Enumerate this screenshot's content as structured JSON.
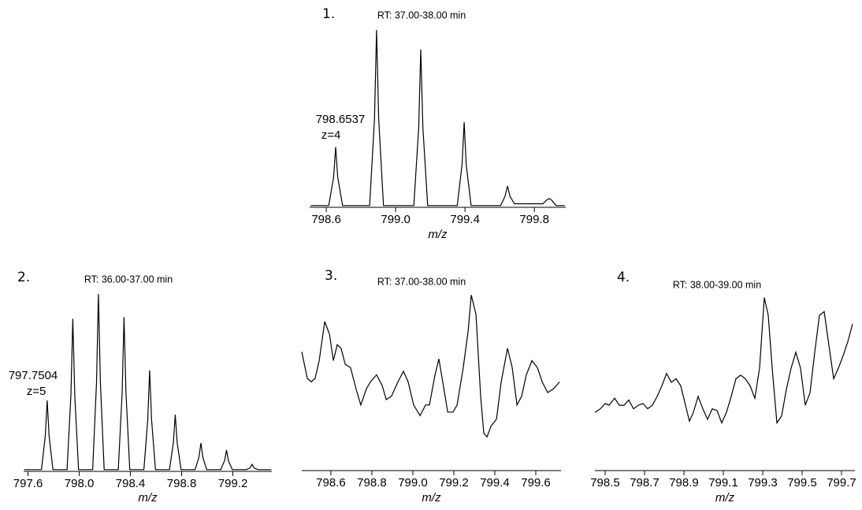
{
  "chart_data": [
    {
      "type": "line",
      "label": "1.",
      "title": "RT: 37.00-38.00  min",
      "xlabel": "m/z",
      "annotations": [
        "798.6537",
        "z=4"
      ],
      "color": "#000000",
      "xlim": [
        798.504,
        799.981
      ],
      "ylim": [
        0,
        100
      ],
      "xticks": [
        798.6,
        {
          "value": 799,
          "label": "799.0"
        },
        799.4,
        799.8
      ],
      "x": [
        798.51,
        798.614,
        798.642,
        798.654,
        798.666,
        798.694,
        798.85,
        798.878,
        798.89,
        798.902,
        798.93,
        799.105,
        799.133,
        799.145,
        799.157,
        799.185,
        799.355,
        799.383,
        799.395,
        799.407,
        799.435,
        799.605,
        799.63,
        799.645,
        799.66,
        799.685,
        799.85,
        799.87,
        799.886,
        799.9,
        799.925,
        799.975
      ],
      "values": [
        1,
        1,
        17,
        34,
        17,
        1,
        1,
        50,
        100,
        50,
        1,
        1,
        45,
        89,
        45,
        1,
        1,
        24,
        48,
        24,
        1,
        1,
        6,
        12,
        6,
        2,
        2,
        4,
        5,
        4,
        1,
        1
      ]
    },
    {
      "type": "line",
      "label": "2.",
      "title": "RT: 36.00-37.00  min",
      "xlabel": "m/z",
      "annotations": [
        "797.7504",
        "z=5"
      ],
      "color": "#000000",
      "xlim": [
        797.566,
        799.504
      ],
      "ylim": [
        0,
        100
      ],
      "xticks": [
        797.6,
        {
          "value": 798,
          "label": "798.0"
        },
        798.4,
        798.8,
        799.2
      ],
      "x": [
        797.57,
        797.705,
        797.735,
        797.75,
        797.765,
        797.795,
        797.905,
        797.935,
        797.95,
        797.965,
        797.995,
        798.105,
        798.135,
        798.15,
        798.165,
        798.195,
        798.305,
        798.335,
        798.35,
        798.365,
        798.395,
        798.505,
        798.535,
        798.55,
        798.565,
        798.595,
        798.705,
        798.735,
        798.75,
        798.765,
        798.795,
        798.905,
        798.935,
        798.95,
        798.965,
        798.995,
        799.105,
        799.135,
        799.15,
        799.165,
        799.195,
        799.305,
        799.335,
        799.35,
        799.365,
        799.395,
        799.5
      ],
      "values": [
        1,
        1,
        20,
        40,
        20,
        1,
        1,
        43,
        86,
        43,
        1,
        1,
        50,
        100,
        50,
        1,
        1,
        44,
        87,
        44,
        1,
        1,
        29,
        57,
        29,
        1,
        1,
        16,
        32,
        16,
        1,
        1,
        8,
        16,
        8,
        1,
        1,
        6,
        12,
        6,
        1,
        1,
        2,
        4,
        2,
        1,
        1
      ]
    },
    {
      "type": "line",
      "label": "3.",
      "title": "RT: 37.00-38.00  min",
      "xlabel": "m/z",
      "annotations": [],
      "color": "#000000",
      "xlim": [
        798.458,
        799.723
      ],
      "ylim": [
        0,
        100
      ],
      "xticks": [
        798.6,
        798.8,
        {
          "value": 799,
          "label": "799.0"
        },
        799.2,
        799.4,
        799.6
      ],
      "x": [
        798.458,
        798.485,
        798.504,
        798.523,
        798.543,
        798.57,
        798.593,
        798.612,
        798.631,
        798.65,
        798.67,
        798.696,
        798.723,
        798.746,
        798.773,
        798.793,
        798.823,
        798.85,
        798.87,
        798.896,
        798.927,
        798.954,
        798.977,
        799.004,
        799.035,
        799.062,
        799.081,
        799.108,
        799.127,
        799.146,
        799.17,
        799.196,
        799.216,
        799.246,
        799.27,
        799.285,
        799.308,
        799.331,
        799.346,
        799.362,
        799.381,
        799.408,
        799.431,
        799.462,
        799.485,
        799.508,
        799.531,
        799.554,
        799.581,
        799.608,
        799.631,
        799.658,
        799.685,
        799.716
      ],
      "values": [
        67,
        52,
        50,
        52,
        62,
        84,
        77,
        62,
        71,
        69,
        60,
        58,
        46,
        37,
        46,
        50,
        54,
        48,
        40,
        42,
        50,
        56,
        50,
        37,
        31,
        37,
        37,
        54,
        63,
        50,
        33,
        33,
        37,
        58,
        79,
        99,
        88,
        42,
        21,
        19,
        25,
        29,
        50,
        69,
        58,
        37,
        42,
        54,
        62,
        58,
        50,
        44,
        46,
        50
      ]
    },
    {
      "type": "line",
      "label": "4.",
      "title": "RT: 38.00-39.00  min",
      "xlabel": "m/z",
      "annotations": [],
      "color": "#000000",
      "xlim": [
        798.448,
        799.768
      ],
      "ylim": [
        0,
        100
      ],
      "xticks": [
        798.5,
        798.7,
        798.9,
        799.1,
        799.3,
        799.5,
        799.7
      ],
      "x": [
        798.448,
        798.476,
        798.5,
        798.52,
        798.548,
        798.572,
        798.596,
        798.62,
        798.644,
        798.668,
        798.692,
        798.716,
        798.74,
        798.764,
        798.788,
        798.812,
        798.836,
        798.86,
        798.884,
        798.908,
        798.928,
        798.948,
        798.972,
        798.996,
        799.02,
        799.044,
        799.068,
        799.092,
        799.116,
        799.14,
        799.164,
        799.188,
        799.212,
        799.236,
        799.26,
        799.284,
        799.308,
        799.328,
        799.348,
        799.372,
        799.396,
        799.42,
        799.444,
        799.468,
        799.492,
        799.516,
        799.54,
        799.564,
        799.588,
        799.612,
        799.636,
        799.66,
        799.684,
        799.708,
        799.732,
        799.756
      ],
      "values": [
        33,
        35,
        38,
        37,
        41,
        37,
        37,
        40,
        35,
        37,
        38,
        35,
        37,
        42,
        48,
        55,
        50,
        52,
        48,
        37,
        28,
        33,
        42,
        35,
        29,
        35,
        34,
        27,
        33,
        42,
        52,
        54,
        52,
        48,
        41,
        58,
        98,
        88,
        58,
        27,
        31,
        46,
        58,
        67,
        58,
        37,
        44,
        67,
        88,
        90,
        71,
        52,
        58,
        65,
        73,
        83
      ]
    }
  ]
}
